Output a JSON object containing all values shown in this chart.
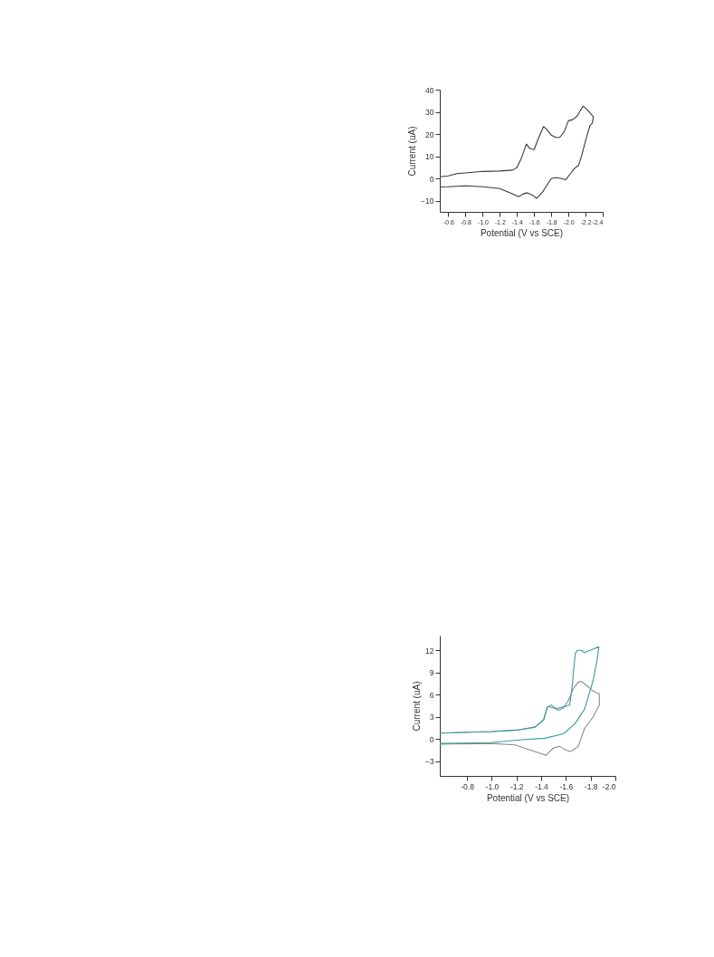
{
  "chart_data": [
    {
      "type": "line",
      "xlabel": "Potential (V vs SCE)",
      "ylabel": "Current (uA)",
      "xlim": [
        -0.5,
        -2.4
      ],
      "xticks": [
        {
          "value": -0.6,
          "label": "-0.6"
        },
        {
          "value": -0.8,
          "label": "-0.8"
        },
        {
          "value": -1.0,
          "label": "-1.0"
        },
        {
          "value": -1.2,
          "label": "-1.2"
        },
        {
          "value": -1.4,
          "label": "-1.4"
        },
        {
          "value": -1.6,
          "label": "-1.6"
        },
        {
          "value": -1.8,
          "label": "-1.8"
        },
        {
          "value": -2.0,
          "label": "-2.0"
        },
        {
          "value": -2.2,
          "label": "-2.2"
        },
        {
          "value": -2.4,
          "label": "-2.4"
        }
      ],
      "ylim": [
        -15,
        40
      ],
      "yticks": [
        -10,
        0,
        10,
        20,
        30,
        40
      ],
      "grid": false,
      "legend": false,
      "marker": "none",
      "line_style": "solid",
      "series": [
        {
          "color": "#3a3a3a",
          "x": [
            -0.5,
            -0.6,
            -0.7,
            -0.8,
            -1.0,
            -1.2,
            -1.35,
            -1.4,
            -1.45,
            -1.51,
            -1.55,
            -1.6,
            -1.65,
            -1.71,
            -1.75,
            -1.8,
            -1.85,
            -1.9,
            -1.95,
            -2.0,
            -2.05,
            -2.1,
            -2.17,
            -2.22,
            -2.29,
            -2.28,
            -2.25,
            -2.2,
            -2.16,
            -2.12,
            -2.07,
            -2.02,
            -1.97,
            -1.95,
            -1.9,
            -1.85,
            -1.8,
            -1.75,
            -1.7,
            -1.63,
            -1.58,
            -1.52,
            -1.47,
            -1.42,
            -1.35,
            -1.2,
            -1.0,
            -0.8,
            -0.6,
            -0.5
          ],
          "values": [
            0.8,
            1.2,
            2.2,
            2.5,
            3.2,
            3.4,
            3.8,
            5,
            9,
            15.5,
            13.5,
            13,
            18,
            23.4,
            22,
            19.5,
            18.5,
            18.5,
            21,
            26,
            26.5,
            28,
            32.6,
            31,
            27.8,
            25,
            23.7,
            17,
            11,
            6,
            4.5,
            2,
            -0.5,
            -0.3,
            0.2,
            0.4,
            0,
            -3,
            -6,
            -8.9,
            -7.5,
            -6.4,
            -7,
            -8.2,
            -7,
            -4.5,
            -3.7,
            -3.3,
            -3.7,
            -3.8
          ]
        }
      ]
    },
    {
      "type": "line",
      "xlabel": "Potential (V vs SCE)",
      "ylabel": "Current (uA)",
      "xlim": [
        -0.58,
        -2.0
      ],
      "xticks": [
        {
          "value": -0.8,
          "label": "-0.8"
        },
        {
          "value": -1.0,
          "label": "-1.0"
        },
        {
          "value": -1.2,
          "label": "-1.2"
        },
        {
          "value": -1.4,
          "label": "-1.4"
        },
        {
          "value": -1.6,
          "label": "-1.6"
        },
        {
          "value": -1.8,
          "label": "-1.8"
        },
        {
          "value": -2.0,
          "label": "-2.0"
        }
      ],
      "ylim": [
        -5,
        14
      ],
      "yticks": [
        -3,
        0,
        3,
        6,
        9,
        12
      ],
      "grid": false,
      "legend": false,
      "marker": "none",
      "line_style": "solid",
      "series": [
        {
          "color": "#8c8c8c",
          "x": [
            -0.58,
            -1.0,
            -1.2,
            -1.35,
            -1.42,
            -1.45,
            -1.5,
            -1.54,
            -1.58,
            -1.62,
            -1.66,
            -1.7,
            -1.725,
            -1.77,
            -1.82,
            -1.87,
            -1.87,
            -1.82,
            -1.75,
            -1.7,
            -1.65,
            -1.63,
            -1.59,
            -1.55,
            -1.5,
            -1.44,
            -1.33,
            -1.19,
            -0.99,
            -0.58
          ],
          "values": [
            0.8,
            1.0,
            1.2,
            1.6,
            2.6,
            4.4,
            4.2,
            3.9,
            4.2,
            5.2,
            6.8,
            7.7,
            7.8,
            7.2,
            6.5,
            6.1,
            4.6,
            3.0,
            1.4,
            -1.0,
            -1.6,
            -1.7,
            -1.4,
            -1.0,
            -1.2,
            -2.2,
            -1.6,
            -0.8,
            -0.6,
            -0.7
          ]
        },
        {
          "color": "#3a9aa0",
          "x": [
            -0.58,
            -1.0,
            -1.2,
            -1.35,
            -1.42,
            -1.45,
            -1.48,
            -1.52,
            -1.57,
            -1.63,
            -1.65,
            -1.675,
            -1.69,
            -1.725,
            -1.75,
            -1.867,
            -1.85,
            -1.82,
            -1.75,
            -1.67,
            -1.58,
            -1.43,
            -1.24,
            -0.99,
            -0.58
          ],
          "values": [
            0.8,
            1.0,
            1.2,
            1.6,
            2.6,
            4.3,
            4.6,
            4.1,
            4.3,
            4.6,
            7,
            11.5,
            12,
            12,
            11.7,
            12.5,
            10.5,
            7.9,
            4.0,
            2.0,
            0.7,
            0.1,
            -0.1,
            -0.5,
            -0.6
          ]
        }
      ]
    }
  ]
}
